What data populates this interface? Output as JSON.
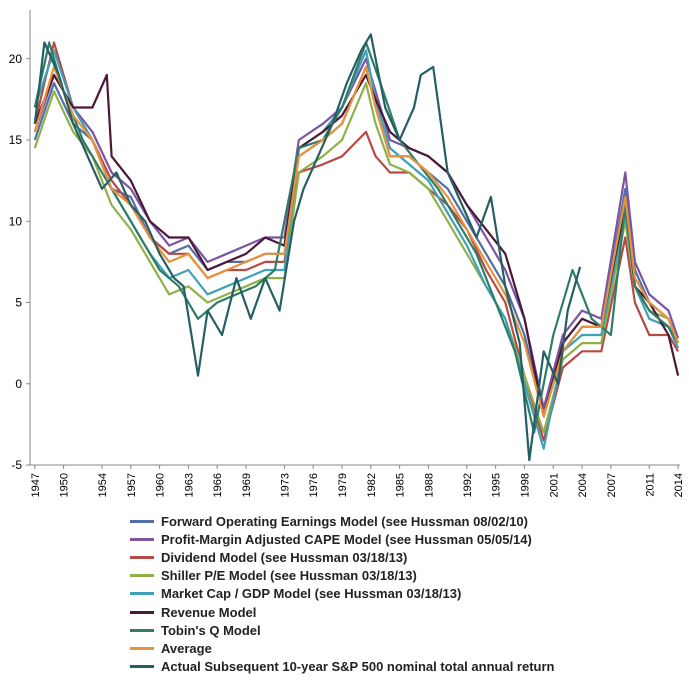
{
  "chart_data": {
    "type": "line",
    "title": "",
    "xlabel": "",
    "ylabel": "",
    "xlim": [
      1946.5,
      2014.2
    ],
    "ylim": [
      -5,
      23
    ],
    "yticks": [
      "-5",
      "0",
      "5",
      "10",
      "15",
      "20"
    ],
    "xticks": [
      "1947",
      "1950",
      "1954",
      "1957",
      "1960",
      "1963",
      "1966",
      "1969",
      "1973",
      "1976",
      "1979",
      "1982",
      "1985",
      "1988",
      "1992",
      "1995",
      "1998",
      "2001",
      "2004",
      "2007",
      "2011",
      "2014"
    ],
    "grid": false,
    "legend_position": "bottom",
    "series": [
      {
        "name": "Forward Operating Earnings Model (see Hussman 08/02/10)",
        "color": "#4f6fa8",
        "x": [
          1947,
          1949,
          1951,
          1953,
          1955,
          1957,
          1959,
          1961,
          1963,
          1965,
          1967,
          1969,
          1971,
          1973,
          1974.5,
          1977,
          1979,
          1981.5,
          1982.5,
          1984,
          1986,
          1988,
          1990,
          1992,
          1994,
          1996,
          1998,
          2000,
          2002,
          2004,
          2006,
          2008.5,
          2009.5,
          2011,
          2013,
          2014
        ],
        "y": [
          15,
          18.5,
          16,
          15,
          12,
          11.5,
          9,
          8,
          8.5,
          7,
          7.5,
          7.5,
          8,
          8,
          14,
          15,
          16,
          19.5,
          17,
          14,
          14,
          13,
          12,
          10,
          8,
          6,
          3,
          -2,
          2,
          3.5,
          3.5,
          12,
          7,
          5,
          4,
          2.5
        ]
      },
      {
        "name": "Profit-Margin Adjusted CAPE Model (see Hussman 05/05/14)",
        "color": "#7b55a3",
        "x": [
          1947,
          1949,
          1951,
          1953,
          1955,
          1957,
          1959,
          1961,
          1963,
          1965,
          1967,
          1969,
          1971,
          1973,
          1974.5,
          1977,
          1979,
          1981.5,
          1982.5,
          1984,
          1986,
          1988,
          1990,
          1992,
          1994,
          1996,
          1998,
          2000,
          2002,
          2004,
          2006,
          2008.5,
          2009.5,
          2011,
          2013,
          2014
        ],
        "y": [
          15.5,
          19,
          17,
          15.5,
          13,
          12,
          10,
          8.5,
          9,
          7.5,
          8,
          8.5,
          9,
          9,
          15,
          16,
          17,
          20,
          18,
          15,
          14.5,
          14,
          13,
          11,
          9,
          7,
          4,
          -1.5,
          3,
          4.5,
          4,
          13,
          7.5,
          5.5,
          4.5,
          2.8
        ]
      },
      {
        "name": "Dividend Model (see Hussman 03/18/13)",
        "color": "#b84a45",
        "x": [
          1947,
          1949,
          1951,
          1953,
          1955,
          1957,
          1959,
          1961,
          1963,
          1965,
          1967,
          1969,
          1971,
          1973,
          1974.5,
          1977,
          1979,
          1981.5,
          1982.5,
          1984,
          1986,
          1988,
          1990,
          1992,
          1994,
          1996,
          1998,
          2000,
          2002,
          2004,
          2006,
          2008.5,
          2009.5,
          2011,
          2013,
          2014
        ],
        "y": [
          16,
          21,
          17,
          15,
          12.5,
          11,
          9,
          8,
          8,
          6.5,
          7,
          7,
          7.5,
          7.5,
          13,
          13.5,
          14,
          15.5,
          14,
          13,
          13,
          12,
          11,
          9.5,
          7,
          5,
          0.5,
          -3.5,
          1,
          2,
          2,
          9,
          5,
          3,
          3,
          2
        ]
      },
      {
        "name": "Shiller P/E Model (see Hussman 03/18/13)",
        "color": "#8fb04a",
        "x": [
          1947,
          1949,
          1951,
          1953,
          1955,
          1957,
          1959,
          1961,
          1963,
          1965,
          1967,
          1969,
          1971,
          1973,
          1974.5,
          1977,
          1979,
          1981.5,
          1982.5,
          1984,
          1986,
          1988,
          1990,
          1992,
          1994,
          1996,
          1998,
          2000,
          2002,
          2004,
          2006,
          2008.5,
          2009.5,
          2011,
          2013,
          2014
        ],
        "y": [
          14.5,
          18,
          15.5,
          14,
          11,
          9.5,
          7.5,
          5.5,
          6,
          5,
          5.5,
          6,
          6.5,
          6.5,
          13,
          14,
          15,
          18.5,
          16,
          13.5,
          13,
          12,
          10,
          8,
          6,
          4,
          0.5,
          -3,
          1.5,
          2.5,
          2.5,
          10,
          6,
          4.5,
          4,
          2.5
        ]
      },
      {
        "name": "Market Cap / GDP Model (see Hussman 03/18/13)",
        "color": "#3fa1b5",
        "x": [
          1947,
          1949,
          1951,
          1953,
          1955,
          1957,
          1959,
          1961,
          1963,
          1965,
          1967,
          1969,
          1971,
          1973,
          1974.5,
          1977,
          1979,
          1981.5,
          1982.5,
          1984,
          1986,
          1988,
          1990,
          1992,
          1994,
          1996,
          1998,
          2000,
          2002,
          2004,
          2006,
          2008.5,
          2009.5,
          2011,
          2013,
          2014
        ],
        "y": [
          17,
          20.5,
          17,
          15,
          12,
          10,
          8,
          6.5,
          7,
          5.5,
          6,
          6.5,
          7,
          7,
          14.5,
          15.5,
          17,
          20.5,
          17.5,
          14.5,
          13.5,
          12.5,
          10.5,
          8.5,
          6,
          4,
          0,
          -4,
          2,
          3,
          3,
          10.5,
          6,
          4,
          3.5,
          2.2
        ]
      },
      {
        "name": "Revenue Model",
        "color": "#4b1838",
        "x": [
          1947,
          1949,
          1951,
          1953,
          1954.5,
          1955,
          1957,
          1959,
          1961,
          1963,
          1965,
          1967,
          1969,
          1971,
          1973,
          1974.5,
          1977,
          1979,
          1981.5,
          1982.5,
          1984,
          1986,
          1988,
          1990,
          1992,
          1994,
          1996,
          1998,
          2000,
          2002,
          2004,
          2006,
          2008.5,
          2009.5,
          2011,
          2013,
          2014
        ],
        "y": [
          16,
          19,
          17,
          17,
          19,
          14,
          12.5,
          10,
          9,
          9,
          7,
          7.5,
          8,
          9,
          8.5,
          14.5,
          15.5,
          16.5,
          19,
          17.5,
          15.5,
          14.5,
          14,
          13,
          11,
          9.5,
          8,
          4,
          -2,
          2.5,
          4,
          3.5,
          11,
          6,
          5,
          3,
          0.5
        ]
      },
      {
        "name": "Tobin's Q Model",
        "color": "#2d7d68",
        "x": [
          1947,
          1948.5,
          1950,
          1952,
          1954,
          1956,
          1958,
          1960,
          1962,
          1964,
          1966,
          1968,
          1970,
          1972,
          1974.5,
          1977,
          1979,
          1981.5,
          1983,
          1985,
          1987,
          1989,
          1991,
          1993,
          1995,
          1997,
          1999,
          2001,
          2003,
          2005,
          2007,
          2008.5,
          2009.5,
          2011,
          2013,
          2014
        ],
        "y": [
          17,
          21,
          18,
          15,
          13,
          11,
          9,
          7,
          6,
          4,
          5,
          5.5,
          6,
          7,
          14.5,
          15,
          17,
          21,
          18.5,
          15,
          13.5,
          12,
          10,
          8,
          5,
          2,
          -3,
          3,
          7,
          4,
          3,
          11,
          6,
          4.5,
          3.5,
          2.5
        ]
      },
      {
        "name": "Average",
        "color": "#e8923a",
        "x": [
          1947,
          1949,
          1951,
          1953,
          1955,
          1957,
          1959,
          1961,
          1963,
          1965,
          1967,
          1969,
          1971,
          1973,
          1974.5,
          1977,
          1979,
          1981.5,
          1982.5,
          1984,
          1986,
          1988,
          1990,
          1992,
          1994,
          1996,
          1998,
          2000,
          2002,
          2004,
          2006,
          2008.5,
          2009.5,
          2011,
          2013,
          2014
        ],
        "y": [
          15.5,
          19.5,
          16.5,
          15,
          12,
          11,
          9,
          7.5,
          8,
          6.5,
          7,
          7.5,
          8,
          8,
          14,
          15,
          16,
          19.5,
          17,
          14,
          14,
          13,
          11.5,
          9.5,
          7.5,
          5.5,
          2.5,
          -2,
          2,
          3.5,
          3.5,
          11.5,
          6.5,
          5,
          4,
          2.5
        ]
      },
      {
        "name": "Actual Subsequent 10-year S&P 500 nominal total annual return",
        "color": "#265f63",
        "x": [
          1947,
          1948,
          1949.5,
          1951,
          1952.5,
          1954,
          1955.5,
          1957,
          1958.5,
          1960,
          1961.5,
          1962.5,
          1964,
          1965,
          1966.5,
          1968,
          1969.5,
          1971,
          1972.5,
          1974,
          1975,
          1976.5,
          1978,
          1979.5,
          1981,
          1982,
          1983.5,
          1985,
          1986.5,
          1987.2,
          1988.5,
          1990,
          1991.5,
          1993,
          1994.5,
          1996,
          1997.5,
          1998.5,
          2000,
          2001.5,
          2002.5,
          2003.8
        ],
        "y": [
          16,
          21,
          19,
          16,
          14,
          12,
          13,
          11,
          10,
          8,
          6.5,
          6,
          0.5,
          4.5,
          3,
          6.5,
          4,
          6.5,
          4.5,
          10,
          12,
          14,
          16,
          18.5,
          20.5,
          21.5,
          17,
          15,
          17,
          19,
          19.5,
          13,
          11,
          9,
          11.5,
          6,
          2.5,
          -4.7,
          2,
          0,
          4.5,
          7.2
        ]
      }
    ]
  }
}
